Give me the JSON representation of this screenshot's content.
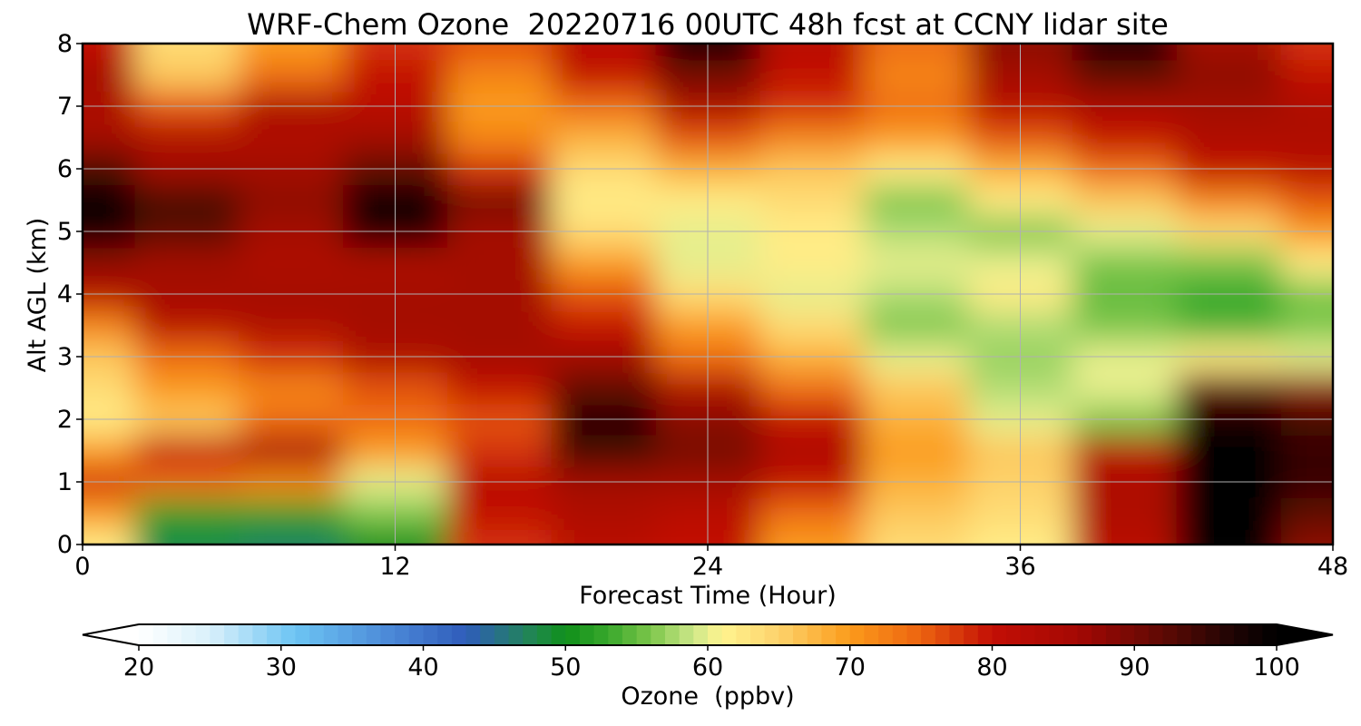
{
  "chart_data": {
    "type": "heatmap",
    "title": "WRF-Chem Ozone  20220716 00UTC 48h fcst at CCNY lidar site",
    "xlabel": "Forecast Time (Hour)",
    "ylabel": "Alt AGL (km)",
    "xlim": [
      0,
      48
    ],
    "ylim": [
      0,
      8
    ],
    "xticks": [
      0,
      12,
      24,
      36,
      48
    ],
    "yticks": [
      0,
      1,
      2,
      3,
      4,
      5,
      6,
      7,
      8
    ],
    "grid": true,
    "x": [
      0,
      4,
      8,
      12,
      16,
      20,
      24,
      28,
      32,
      36,
      40,
      44,
      48
    ],
    "y": [
      0,
      0.5,
      1,
      1.5,
      2,
      2.5,
      3,
      3.5,
      4,
      4.5,
      5,
      5.5,
      6,
      6.5,
      7,
      7.5,
      8
    ],
    "z": [
      [
        62,
        48,
        47,
        50,
        78,
        82,
        80,
        70,
        64,
        62,
        82,
        100,
        88
      ],
      [
        70,
        52,
        52,
        56,
        80,
        84,
        82,
        74,
        66,
        64,
        84,
        100,
        92
      ],
      [
        78,
        74,
        72,
        60,
        82,
        86,
        86,
        80,
        68,
        65,
        84,
        100,
        95
      ],
      [
        70,
        80,
        85,
        70,
        78,
        94,
        90,
        84,
        70,
        66,
        82,
        100,
        95
      ],
      [
        62,
        66,
        74,
        74,
        76,
        96,
        88,
        80,
        68,
        60,
        56,
        98,
        94
      ],
      [
        64,
        70,
        72,
        76,
        80,
        92,
        84,
        74,
        66,
        58,
        60,
        92,
        88
      ],
      [
        66,
        74,
        78,
        84,
        86,
        86,
        74,
        68,
        60,
        57,
        60,
        62,
        60
      ],
      [
        72,
        82,
        84,
        86,
        86,
        80,
        70,
        64,
        56,
        58,
        56,
        54,
        56
      ],
      [
        82,
        86,
        86,
        86,
        86,
        76,
        64,
        60,
        58,
        62,
        55,
        53,
        56
      ],
      [
        88,
        86,
        84,
        84,
        86,
        70,
        60,
        62,
        60,
        60,
        56,
        56,
        62
      ],
      [
        98,
        92,
        86,
        96,
        86,
        64,
        60,
        62,
        58,
        56,
        60,
        64,
        70
      ],
      [
        100,
        94,
        88,
        100,
        90,
        62,
        62,
        64,
        56,
        62,
        66,
        72,
        76
      ],
      [
        94,
        86,
        86,
        92,
        78,
        64,
        68,
        66,
        62,
        68,
        74,
        80,
        82
      ],
      [
        86,
        84,
        84,
        86,
        72,
        68,
        76,
        72,
        70,
        76,
        80,
        84,
        84
      ],
      [
        84,
        76,
        84,
        82,
        70,
        74,
        84,
        78,
        74,
        82,
        84,
        86,
        84
      ],
      [
        86,
        66,
        74,
        80,
        72,
        80,
        90,
        80,
        72,
        86,
        92,
        88,
        80
      ],
      [
        80,
        64,
        70,
        78,
        76,
        82,
        98,
        82,
        74,
        88,
        96,
        86,
        78
      ]
    ],
    "colorbar": {
      "label": "Ozone  (ppbv)",
      "min": 20,
      "max": 100,
      "ticks": [
        "20",
        "30",
        "40",
        "50",
        "60",
        "70",
        "80",
        "90",
        "100"
      ],
      "extend": "both",
      "stops": [
        {
          "v": 20,
          "c": "#ffffff"
        },
        {
          "v": 25,
          "c": "#d9f0fb"
        },
        {
          "v": 31,
          "c": "#6cc4f3"
        },
        {
          "v": 38,
          "c": "#4a86d6"
        },
        {
          "v": 43,
          "c": "#2f5cba"
        },
        {
          "v": 48,
          "c": "#1f8a4a"
        },
        {
          "v": 50,
          "c": "#0f8f1a"
        },
        {
          "v": 53,
          "c": "#39a82c"
        },
        {
          "v": 56,
          "c": "#7cc64a"
        },
        {
          "v": 59,
          "c": "#cde88a"
        },
        {
          "v": 61,
          "c": "#fff48f"
        },
        {
          "v": 65,
          "c": "#fdd26b"
        },
        {
          "v": 70,
          "c": "#fb9b1b"
        },
        {
          "v": 75,
          "c": "#ec6310"
        },
        {
          "v": 80,
          "c": "#c30f05"
        },
        {
          "v": 86,
          "c": "#a40804"
        },
        {
          "v": 92,
          "c": "#5e0904"
        },
        {
          "v": 97,
          "c": "#1e0404"
        },
        {
          "v": 100,
          "c": "#000000"
        }
      ]
    }
  }
}
